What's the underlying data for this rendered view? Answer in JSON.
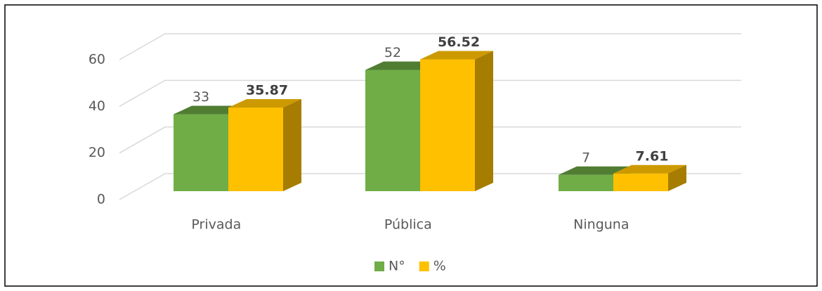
{
  "chart_data": {
    "type": "bar3d",
    "categories": [
      "Privada",
      "Pública",
      "Ninguna"
    ],
    "series": [
      {
        "name": "N°",
        "color": "#70ad47",
        "values": [
          33,
          52,
          7
        ]
      },
      {
        "name": "%",
        "color": "#ffc000",
        "values": [
          35.87,
          56.52,
          7.61
        ]
      }
    ],
    "ylim": [
      0,
      60
    ],
    "yticks": [
      0,
      20,
      40,
      60
    ],
    "grid": true,
    "legend": "bottom"
  }
}
